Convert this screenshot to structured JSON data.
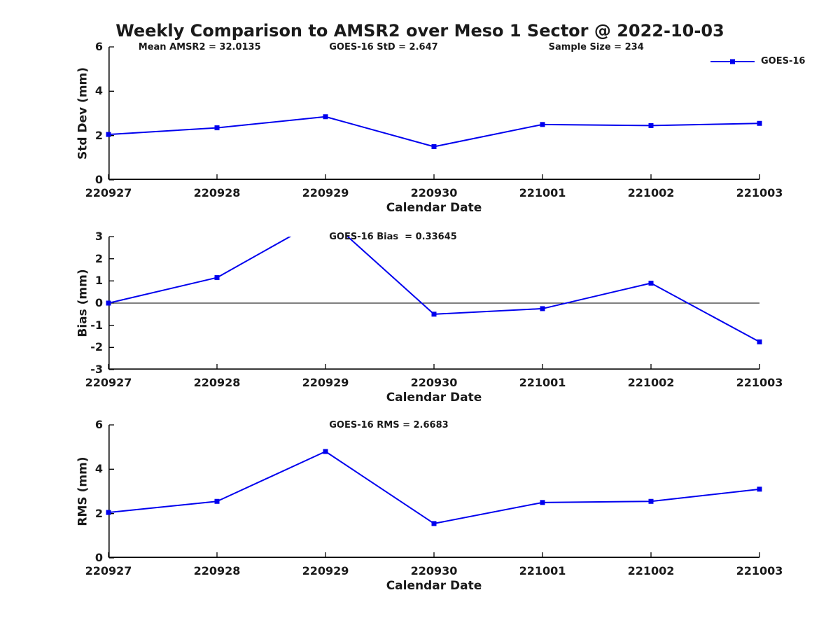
{
  "title": "Weekly Comparison to AMSR2 over Meso 1 Sector @ 2022-10-03",
  "legend": {
    "label": "GOES-16"
  },
  "colors": {
    "series_line": "#0000EE",
    "axis": "#000000",
    "zero_line": "#000000",
    "text": "#1a1a1a"
  },
  "chart_data": [
    {
      "type": "line",
      "id": "std-dev",
      "ylabel": "Std Dev (mm)",
      "xlabel": "Calendar Date",
      "ylim": [
        0,
        6
      ],
      "yticks": [
        0,
        2,
        4,
        6
      ],
      "categories": [
        "220927",
        "220928",
        "220929",
        "220930",
        "221001",
        "221002",
        "221003"
      ],
      "series": [
        {
          "name": "GOES-16",
          "values": [
            2.05,
            2.35,
            2.85,
            1.5,
            2.5,
            2.45,
            2.55
          ]
        }
      ],
      "annotations": [
        {
          "text": "Mean AMSR2 = 32.0135",
          "xfrac": 0.046
        },
        {
          "text": "GOES-16 StD = 2.647",
          "xfrac": 0.339
        },
        {
          "text": "Sample Size = 234",
          "xfrac": 0.676
        }
      ],
      "zero_line": false,
      "legend_position": "top-right",
      "grid": false
    },
    {
      "type": "line",
      "id": "bias",
      "ylabel": "Bias (mm)",
      "xlabel": "Calendar Date",
      "ylim": [
        -3,
        3
      ],
      "yticks": [
        -3,
        -2,
        -1,
        0,
        1,
        2,
        3
      ],
      "categories": [
        "220927",
        "220928",
        "220929",
        "220930",
        "221001",
        "221002",
        "221003"
      ],
      "series": [
        {
          "name": "GOES-16",
          "values": [
            0.0,
            1.15,
            3.9,
            -0.5,
            -0.25,
            0.9,
            -1.75
          ]
        }
      ],
      "annotations": [
        {
          "text": "GOES-16 Bias  = 0.33645",
          "xfrac": 0.339
        }
      ],
      "zero_line": true,
      "grid": false,
      "note_on_clipping": "peak at 220929 exceeds ylim and is clipped at +3"
    },
    {
      "type": "line",
      "id": "rms",
      "ylabel": "RMS (mm)",
      "xlabel": "Calendar Date",
      "ylim": [
        0,
        6
      ],
      "yticks": [
        0,
        2,
        4,
        6
      ],
      "categories": [
        "220927",
        "220928",
        "220929",
        "220930",
        "221001",
        "221002",
        "221003"
      ],
      "series": [
        {
          "name": "GOES-16",
          "values": [
            2.05,
            2.55,
            4.8,
            1.55,
            2.5,
            2.55,
            3.1
          ]
        }
      ],
      "annotations": [
        {
          "text": "GOES-16 RMS = 2.6683",
          "xfrac": 0.339
        }
      ],
      "zero_line": false,
      "grid": false
    }
  ]
}
